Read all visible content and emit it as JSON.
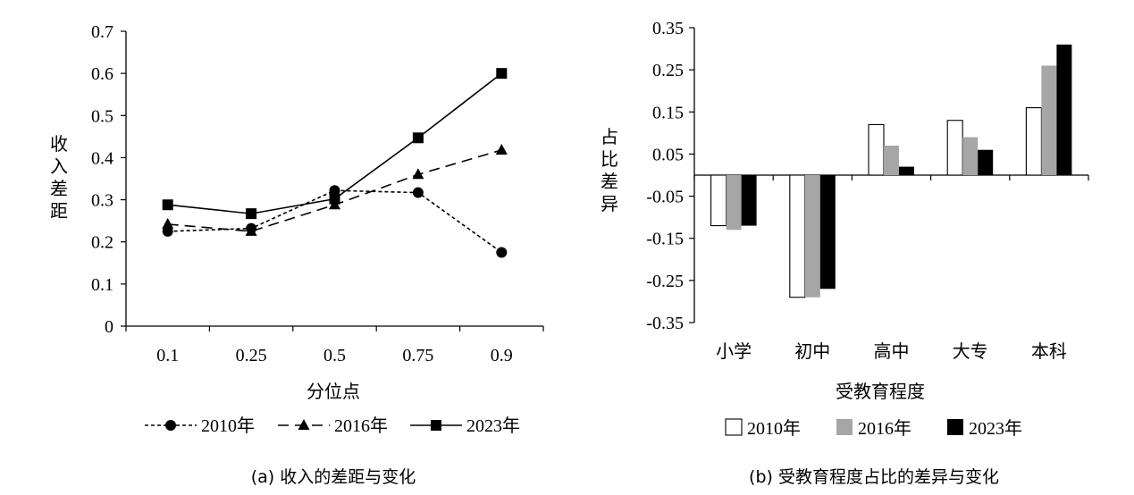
{
  "chart_data": [
    {
      "type": "line",
      "caption": "(a) 收入的差距与变化",
      "xlabel": "分位点",
      "ylabel": "收入差距",
      "categories": [
        "0.1",
        "0.25",
        "0.5",
        "0.75",
        "0.9"
      ],
      "ylim": [
        0,
        0.7
      ],
      "yticks": [
        "0",
        "0.1",
        "0.2",
        "0.3",
        "0.4",
        "0.5",
        "0.6",
        "0.7"
      ],
      "legend": "bottom",
      "grid": false,
      "series": [
        {
          "name": "2010年",
          "values": [
            0.225,
            0.232,
            0.322,
            0.317,
            0.175
          ],
          "marker": "circle",
          "dash": "short"
        },
        {
          "name": "2016年",
          "values": [
            0.242,
            0.225,
            0.288,
            0.36,
            0.418
          ],
          "marker": "triangle",
          "dash": "long"
        },
        {
          "name": "2023年",
          "values": [
            0.288,
            0.267,
            0.302,
            0.447,
            0.6
          ],
          "marker": "square",
          "dash": "solid"
        }
      ]
    },
    {
      "type": "bar",
      "caption": "(b) 受教育程度占比的差异与变化",
      "xlabel": "受教育程度",
      "ylabel": "占比差异",
      "categories": [
        "小学",
        "初中",
        "高中",
        "大专",
        "本科"
      ],
      "ylim": [
        -0.35,
        0.35
      ],
      "yticks": [
        "0.35",
        "0.25",
        "0.15",
        "0.05",
        "-0.05",
        "-0.15",
        "-0.25",
        "-0.35"
      ],
      "legend": "bottom",
      "grid": false,
      "series": [
        {
          "name": "2010年",
          "values": [
            -0.12,
            -0.29,
            0.12,
            0.13,
            0.16
          ],
          "color": "#ffffff"
        },
        {
          "name": "2016年",
          "values": [
            -0.13,
            -0.29,
            0.07,
            0.09,
            0.26
          ],
          "color": "#a6a6a6"
        },
        {
          "name": "2023年",
          "values": [
            -0.12,
            -0.27,
            0.02,
            0.06,
            0.31
          ],
          "color": "#000000"
        }
      ]
    }
  ]
}
